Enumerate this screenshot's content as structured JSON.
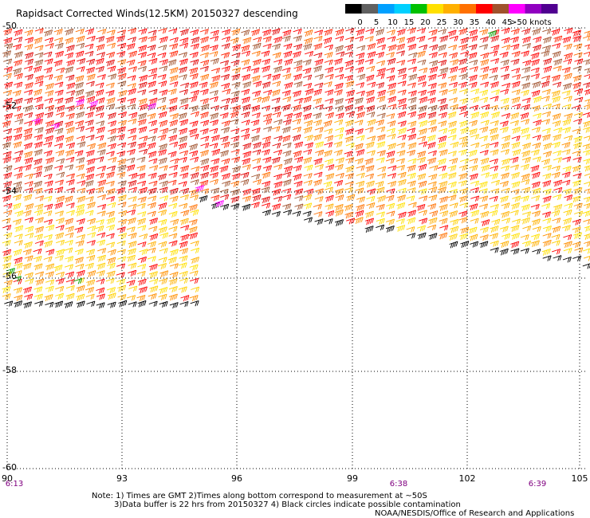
{
  "title": "Rapidsact Corrected Winds(12.5KM) 20150327 descending",
  "colorbar": {
    "labels": [
      "0",
      "5",
      "10",
      "15",
      "20",
      "25",
      "30",
      "35",
      "40",
      "45",
      ">50 knots"
    ],
    "colors": [
      "#000000",
      "#606060",
      "#00a0ff",
      "#00d0ff",
      "#00c000",
      "#ffe000",
      "#ffb000",
      "#ff7000",
      "#ff0000",
      "#a0522d",
      "#ff00ff",
      "#9000c0",
      "#500090"
    ]
  },
  "map": {
    "lat_labels": [
      "-50",
      "-52",
      "-54",
      "-56",
      "-58",
      "-60"
    ],
    "lon_labels": [
      "90",
      "93",
      "96",
      "99",
      "102",
      "105"
    ],
    "time_labels": [
      {
        "text": "6:13",
        "lon": 90
      },
      {
        "text": "6:38",
        "lon": 100.2
      },
      {
        "text": "6:39",
        "lon": 103.8
      }
    ],
    "lon_range": [
      90,
      105
    ],
    "lat_range": [
      -60,
      -50
    ]
  },
  "notes": {
    "line1": "Note: 1) Times are GMT 2)Times along bottom correspond to measurement at ~50S",
    "line2": "3)Data buffer is 22 hrs from 20150327 4) Black circles indicate possible contamination",
    "line3": "NOAA/NESDIS/Office of Research and Applications"
  }
}
